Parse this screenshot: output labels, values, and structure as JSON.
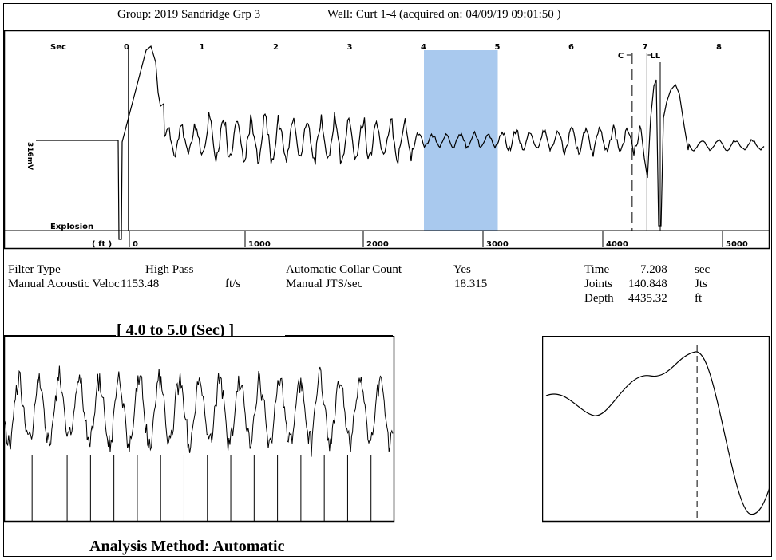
{
  "header": {
    "group": "Group: 2019 Sandridge Grp 3",
    "well": "Well: Curt 1-4 (acquired on: 04/09/19 09:01:50 )"
  },
  "chart_data": [
    {
      "type": "line",
      "x_unit_label": "Sec",
      "x_ticks": [
        "0",
        "1",
        "2",
        "3",
        "4",
        "5",
        "6",
        "7",
        "8"
      ],
      "xlim_sec": [
        0,
        8.6
      ],
      "depth_unit_label": "( ft )",
      "depth_ticks": [
        "0",
        "1000",
        "2000",
        "3000",
        "4000",
        "5000"
      ],
      "amplitude_label": "316mV",
      "explosion_label": "Explosion",
      "highlight_window_sec": [
        4.0,
        5.0
      ],
      "highlight_color": "#a9c9ee",
      "markers": [
        {
          "label": "C",
          "sec": 6.82,
          "style": "dashed"
        },
        {
          "label": "LL",
          "sec": 7.02,
          "style": "solid"
        }
      ],
      "series": [
        {
          "values": []
        }
      ]
    },
    {
      "type": "line",
      "title": "[ 4.0  to  5.0 (Sec) ]",
      "xlim_sec": [
        4.0,
        5.0
      ],
      "collar_marks_sec": [
        4.07,
        4.16,
        4.22,
        4.28,
        4.34,
        4.4,
        4.46,
        4.52,
        4.58,
        4.64,
        4.7,
        4.76,
        4.82,
        4.88,
        4.94
      ]
    },
    {
      "type": "line",
      "marker_position": 0.68
    }
  ],
  "params": {
    "filter_type_label": "Filter Type",
    "filter_type_value": "High Pass",
    "manual_vel_label": "Manual Acoustic Veloc",
    "manual_vel_value": "1153.48",
    "manual_vel_unit": "ft/s",
    "auto_collar_label": "Automatic Collar Count",
    "auto_collar_value": "Yes",
    "manual_jts_label": "Manual JTS/sec",
    "manual_jts_value": "18.315",
    "time_label": "Time",
    "time_value": "7.208",
    "time_unit": "sec",
    "joints_label": "Joints",
    "joints_value": "140.848",
    "joints_unit": "Jts",
    "depth_label": "Depth",
    "depth_value": "4435.32",
    "depth_unit": "ft"
  },
  "footer": {
    "analysis": "Analysis Method:   Automatic"
  }
}
